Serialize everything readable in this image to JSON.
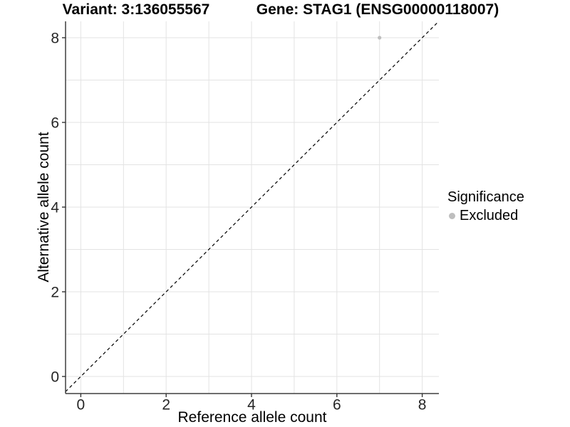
{
  "chart_data": {
    "type": "scatter",
    "titles": {
      "left": "Variant: 3:136055567",
      "right": "Gene: STAG1 (ENSG00000118007)"
    },
    "xlabel": "Reference allele count",
    "ylabel": "Alternative allele count",
    "xlim": [
      -0.36,
      8.39
    ],
    "ylim": [
      -0.4,
      8.39
    ],
    "x_ticks": [
      0,
      2,
      4,
      6,
      8
    ],
    "y_ticks": [
      0,
      2,
      4,
      6,
      8
    ],
    "grid": {
      "on": true,
      "every": 1,
      "color": "#e3e3e3"
    },
    "axis_color": "#3f3f3f",
    "tick_label_color": "#262626",
    "identity_line": {
      "style": "dashed",
      "color": "#000000",
      "from": -0.36,
      "to": 8.39
    },
    "series": [
      {
        "name": "Excluded",
        "color": "#bebebe",
        "point_radius": 2.6,
        "points": [
          [
            7,
            8
          ]
        ]
      }
    ],
    "legend": {
      "title": "Significance",
      "position": "right",
      "items": [
        {
          "label": "Excluded",
          "color": "#bebebe"
        }
      ]
    }
  }
}
